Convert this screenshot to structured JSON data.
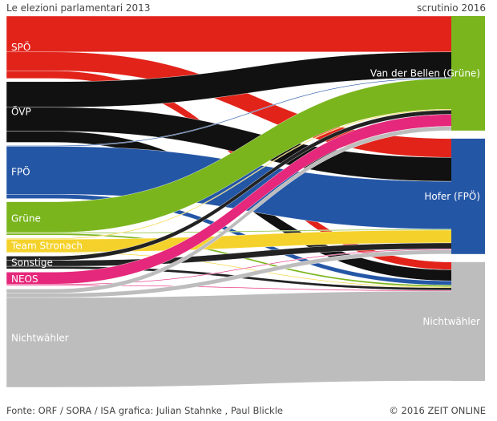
{
  "header": {
    "left_title": "Le elezioni parlamentari 2013",
    "right_title": "scrutinio 2016"
  },
  "footer": {
    "source": "Fonte: ORF / SORA / ISA grafica: Julian Stahnke , Paul Blickle",
    "copyright": "© 2016 ZEIT ONLINE"
  },
  "chart_data": {
    "type": "sankey",
    "sources": [
      {
        "id": "spo",
        "label": "SPÖ",
        "color": "#e2231a"
      },
      {
        "id": "ovp",
        "label": "ÖVP",
        "color": "#111111"
      },
      {
        "id": "fpo",
        "label": "FPÖ",
        "color": "#2456a6"
      },
      {
        "id": "grune",
        "label": "Grüne",
        "color": "#7ab51d"
      },
      {
        "id": "stronach",
        "label": "Team Stronach",
        "color": "#f5d22b"
      },
      {
        "id": "sonstige",
        "label": "Sonstige",
        "color": "#222222"
      },
      {
        "id": "neos",
        "label": "NEOS",
        "color": "#e5287b"
      },
      {
        "id": "nicht",
        "label": "Nichtwähler",
        "color": "#bdbdbd"
      }
    ],
    "destinations": [
      {
        "id": "vdb",
        "label": "Van der Bellen (Grüne)",
        "color": "#7ab51d"
      },
      {
        "id": "hofer",
        "label": "Hofer (FPÖ)",
        "color": "#2456a6"
      },
      {
        "id": "nichtw",
        "label": "Nichtwähler",
        "color": "#bdbdbd"
      }
    ],
    "flows": [
      {
        "from": "spo",
        "to": "vdb",
        "value": 42
      },
      {
        "from": "spo",
        "to": "hofer",
        "value": 22
      },
      {
        "from": "spo",
        "to": "nichtw",
        "value": 9
      },
      {
        "from": "ovp",
        "to": "vdb",
        "value": 30
      },
      {
        "from": "ovp",
        "to": "hofer",
        "value": 28
      },
      {
        "from": "ovp",
        "to": "nichtw",
        "value": 13
      },
      {
        "from": "fpo",
        "to": "vdb",
        "value": 1
      },
      {
        "from": "fpo",
        "to": "hofer",
        "value": 56
      },
      {
        "from": "fpo",
        "to": "nichtw",
        "value": 5
      },
      {
        "from": "grune",
        "to": "vdb",
        "value": 36
      },
      {
        "from": "grune",
        "to": "hofer",
        "value": 1
      },
      {
        "from": "grune",
        "to": "nichtw",
        "value": 2
      },
      {
        "from": "stronach",
        "to": "vdb",
        "value": 1
      },
      {
        "from": "stronach",
        "to": "hofer",
        "value": 15
      },
      {
        "from": "stronach",
        "to": "nichtw",
        "value": 1
      },
      {
        "from": "sonstige",
        "to": "vdb",
        "value": 5
      },
      {
        "from": "sonstige",
        "to": "hofer",
        "value": 7
      },
      {
        "from": "sonstige",
        "to": "nichtw",
        "value": 3
      },
      {
        "from": "neos",
        "to": "vdb",
        "value": 14
      },
      {
        "from": "neos",
        "to": "hofer",
        "value": 1
      },
      {
        "from": "neos",
        "to": "nichtw",
        "value": 1
      },
      {
        "from": "nicht",
        "to": "vdb",
        "value": 5
      },
      {
        "from": "nicht",
        "to": "hofer",
        "value": 5
      },
      {
        "from": "nicht",
        "to": "nichtw",
        "value": 105
      }
    ]
  }
}
